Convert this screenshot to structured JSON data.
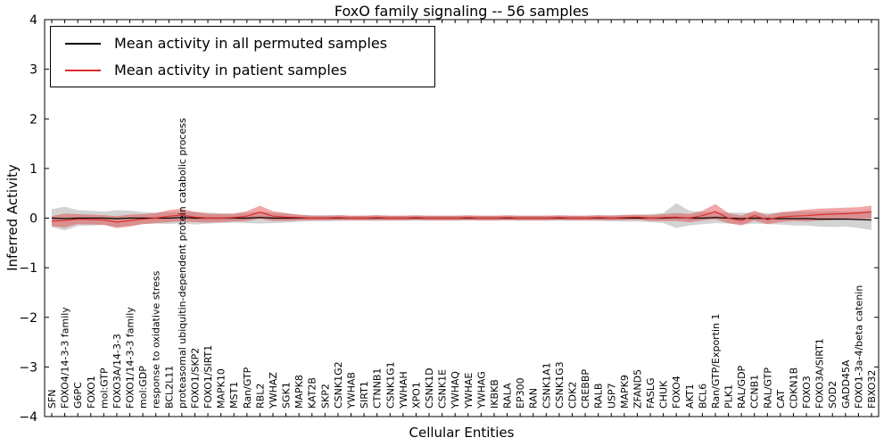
{
  "chart_data": {
    "type": "line",
    "title": "FoxO family signaling -- 56 samples",
    "xlabel": "Cellular Entities",
    "ylabel": "Inferred Activity",
    "ylim": [
      -4,
      4
    ],
    "yticks": [
      4,
      3,
      2,
      1,
      0,
      -1,
      -2,
      -3,
      -4
    ],
    "ytick_labels": [
      "4",
      "3",
      "2",
      "1",
      "0",
      "−1",
      "−2",
      "−3",
      "−4"
    ],
    "grid": false,
    "legend_position": "upper left",
    "categories": [
      "SFN",
      "FOXO4/14-3-3 family",
      "G6PC",
      "FOXO1",
      "mol:GTP",
      "FOXO3A/14-3-3",
      "FOXO1/14-3-3 family",
      "mol:GDP",
      "response to oxidative stress",
      "BCL2L11",
      "proteasomal ubiquitin-dependent protein catabolic process",
      "FOXO1/SKP2",
      "FOXO1/SIRT1",
      "MAPK10",
      "MST1",
      "Ran/GTP",
      "RBL2",
      "YWHAZ",
      "SGK1",
      "MAPK8",
      "KAT2B",
      "SKP2",
      "CSNK1G2",
      "YWHAB",
      "SIRT1",
      "CTNNB1",
      "CSNK1G1",
      "YWHAH",
      "XPO1",
      "CSNK1D",
      "CSNK1E",
      "YWHAQ",
      "YWHAE",
      "YWHAG",
      "IKBKB",
      "RALA",
      "EP300",
      "RAN",
      "CSNK1A1",
      "CSNK1G3",
      "CDK2",
      "CREBBP",
      "RALB",
      "USP7",
      "MAPK9",
      "ZFAND5",
      "FASLG",
      "CHUK",
      "FOXO4",
      "AKT1",
      "BCL6",
      "Ran/GTP/Exportin 1",
      "PLK1",
      "RAL/GDP",
      "CCNB1",
      "RAL/GTP",
      "CAT",
      "CDKN1B",
      "FOXO3",
      "FOXO3A/SIRT1",
      "SOD2",
      "GADD45A",
      "FOXO1-3a-4/beta catenin",
      "FBXO32"
    ],
    "series": [
      {
        "name": "Mean activity in all permuted samples",
        "color": "#000000",
        "band_color": "rgba(130,130,130,0.35)",
        "values": [
          0,
          -0.01,
          0,
          0,
          0,
          -0.01,
          0,
          0,
          0,
          0,
          0.01,
          0,
          0,
          0,
          0,
          0,
          0.01,
          0,
          0,
          0,
          0,
          0,
          0,
          0,
          0,
          0,
          0,
          0,
          0,
          0,
          0,
          0,
          0,
          0,
          0,
          0,
          0,
          0,
          0,
          0,
          0,
          0,
          0,
          0,
          0,
          0,
          0,
          0,
          0.01,
          0,
          0,
          0.01,
          0,
          -0.01,
          0,
          -0.01,
          -0.01,
          -0.01,
          -0.01,
          -0.02,
          -0.02,
          -0.02,
          -0.03,
          -0.04
        ],
        "upper": [
          0.18,
          0.23,
          0.16,
          0.15,
          0.13,
          0.16,
          0.15,
          0.12,
          0.11,
          0.12,
          0.12,
          0.13,
          0.11,
          0.1,
          0.09,
          0.1,
          0.13,
          0.1,
          0.09,
          0.07,
          0.06,
          0.06,
          0.06,
          0.05,
          0.05,
          0.06,
          0.05,
          0.05,
          0.05,
          0.05,
          0.05,
          0.05,
          0.05,
          0.05,
          0.05,
          0.05,
          0.05,
          0.05,
          0.05,
          0.05,
          0.05,
          0.05,
          0.06,
          0.06,
          0.07,
          0.07,
          0.08,
          0.1,
          0.3,
          0.15,
          0.12,
          0.12,
          0.11,
          0.11,
          0.11,
          0.1,
          0.11,
          0.13,
          0.13,
          0.13,
          0.14,
          0.13,
          0.14,
          0.16
        ],
        "lower": [
          -0.18,
          -0.25,
          -0.16,
          -0.15,
          -0.13,
          -0.18,
          -0.15,
          -0.12,
          -0.11,
          -0.12,
          -0.1,
          -0.13,
          -0.11,
          -0.1,
          -0.09,
          -0.1,
          -0.11,
          -0.1,
          -0.09,
          -0.07,
          -0.06,
          -0.06,
          -0.06,
          -0.05,
          -0.05,
          -0.06,
          -0.05,
          -0.05,
          -0.05,
          -0.05,
          -0.05,
          -0.05,
          -0.05,
          -0.05,
          -0.05,
          -0.05,
          -0.05,
          -0.05,
          -0.05,
          -0.05,
          -0.05,
          -0.05,
          -0.06,
          -0.06,
          -0.07,
          -0.07,
          -0.08,
          -0.1,
          -0.2,
          -0.15,
          -0.12,
          -0.1,
          -0.11,
          -0.13,
          -0.11,
          -0.12,
          -0.13,
          -0.15,
          -0.15,
          -0.17,
          -0.18,
          -0.17,
          -0.2,
          -0.24
        ]
      },
      {
        "name": "Mean activity in patient samples",
        "color": "#dd2c2c",
        "band_color": "rgba(225,60,60,0.45)",
        "values": [
          -0.06,
          -0.05,
          -0.02,
          -0.03,
          -0.04,
          -0.08,
          -0.05,
          -0.02,
          0.0,
          0.04,
          0.06,
          0.02,
          0.0,
          0.0,
          0.01,
          0.04,
          0.12,
          0.04,
          0.02,
          0.01,
          0.0,
          0.0,
          0.01,
          0.0,
          0.0,
          0.01,
          0.0,
          0.0,
          0.01,
          0.0,
          0.0,
          0.0,
          0.01,
          0.0,
          0.0,
          0.01,
          0.0,
          0.0,
          0.0,
          0.01,
          0.0,
          0.0,
          0.01,
          0.0,
          0.01,
          0.02,
          0.0,
          0.01,
          0.02,
          0.0,
          0.05,
          0.13,
          0.0,
          -0.05,
          0.05,
          -0.03,
          0.02,
          0.04,
          0.05,
          0.07,
          0.08,
          0.09,
          0.1,
          0.12
        ],
        "upper": [
          0.04,
          0.09,
          0.08,
          0.07,
          0.06,
          0.04,
          0.07,
          0.08,
          0.1,
          0.16,
          0.19,
          0.12,
          0.09,
          0.08,
          0.09,
          0.14,
          0.25,
          0.14,
          0.1,
          0.07,
          0.05,
          0.05,
          0.06,
          0.05,
          0.05,
          0.06,
          0.05,
          0.05,
          0.06,
          0.05,
          0.05,
          0.05,
          0.06,
          0.05,
          0.05,
          0.06,
          0.05,
          0.05,
          0.05,
          0.06,
          0.05,
          0.05,
          0.06,
          0.05,
          0.06,
          0.07,
          0.06,
          0.08,
          0.1,
          0.08,
          0.15,
          0.28,
          0.1,
          0.05,
          0.15,
          0.06,
          0.12,
          0.14,
          0.17,
          0.19,
          0.2,
          0.21,
          0.22,
          0.25
        ],
        "lower": [
          -0.16,
          -0.19,
          -0.12,
          -0.13,
          -0.14,
          -0.2,
          -0.17,
          -0.12,
          -0.1,
          -0.08,
          -0.07,
          -0.08,
          -0.09,
          -0.08,
          -0.07,
          -0.06,
          -0.01,
          -0.06,
          -0.06,
          -0.05,
          -0.05,
          -0.05,
          -0.04,
          -0.05,
          -0.05,
          -0.04,
          -0.05,
          -0.05,
          -0.04,
          -0.05,
          -0.05,
          -0.05,
          -0.04,
          -0.05,
          -0.05,
          -0.04,
          -0.05,
          -0.05,
          -0.05,
          -0.04,
          -0.05,
          -0.05,
          -0.04,
          -0.05,
          -0.04,
          -0.03,
          -0.06,
          -0.06,
          -0.06,
          -0.08,
          -0.05,
          -0.02,
          -0.1,
          -0.15,
          -0.05,
          -0.12,
          -0.08,
          -0.06,
          -0.07,
          -0.05,
          -0.04,
          -0.03,
          -0.02,
          -0.01
        ]
      }
    ]
  }
}
